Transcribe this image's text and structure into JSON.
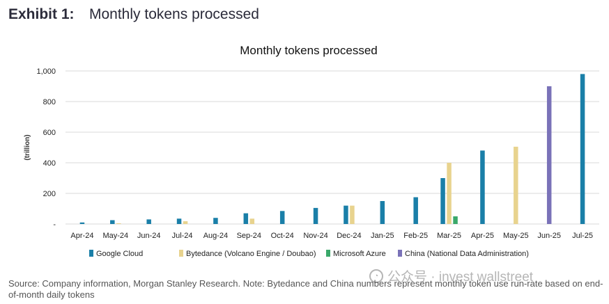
{
  "header": {
    "exhibit_label": "Exhibit 1:",
    "exhibit_title": "Monthly tokens processed"
  },
  "chart_data": {
    "type": "bar",
    "title": "Monthly tokens processed",
    "xlabel": "",
    "ylabel": "(trillion)",
    "ylim": [
      0,
      1000
    ],
    "yticks": [
      0,
      200,
      400,
      600,
      800,
      1000
    ],
    "ytick_labels": [
      "-",
      "200",
      "400",
      "600",
      "800",
      "1,000"
    ],
    "grid": true,
    "legend_position": "bottom",
    "categories": [
      "Apr-24",
      "May-24",
      "Jun-24",
      "Jul-24",
      "Aug-24",
      "Sep-24",
      "Oct-24",
      "Nov-24",
      "Dec-24",
      "Jan-25",
      "Feb-25",
      "Mar-25",
      "Apr-25",
      "May-25",
      "Jun-25",
      "Jul-25"
    ],
    "series": [
      {
        "name": "Google Cloud",
        "color": "#1a7fa8",
        "values": [
          10,
          25,
          30,
          35,
          40,
          70,
          85,
          105,
          120,
          150,
          175,
          300,
          480,
          null,
          null,
          980
        ]
      },
      {
        "name": "Bytedance (Volcano Engine / Doubao)",
        "color": "#e8d38e",
        "values": [
          null,
          5,
          null,
          18,
          null,
          35,
          null,
          null,
          120,
          null,
          null,
          400,
          null,
          505,
          null,
          null
        ]
      },
      {
        "name": "Microsoft Azure",
        "color": "#3aa86a",
        "values": [
          null,
          null,
          null,
          null,
          null,
          null,
          null,
          null,
          null,
          null,
          null,
          50,
          null,
          null,
          null,
          null
        ]
      },
      {
        "name": "China (National Data Administration)",
        "color": "#7a72b8",
        "values": [
          null,
          null,
          null,
          null,
          null,
          null,
          null,
          null,
          null,
          null,
          null,
          null,
          null,
          null,
          900,
          null
        ]
      }
    ]
  },
  "watermark": {
    "icon": "wechat-icon",
    "text": "公众号 · invest wallstreet"
  },
  "footer": {
    "source": "Source: Company information, Morgan Stanley Research. Note: Bytedance and China numbers represent monthly token use run-rate based on end-of-month daily tokens"
  }
}
